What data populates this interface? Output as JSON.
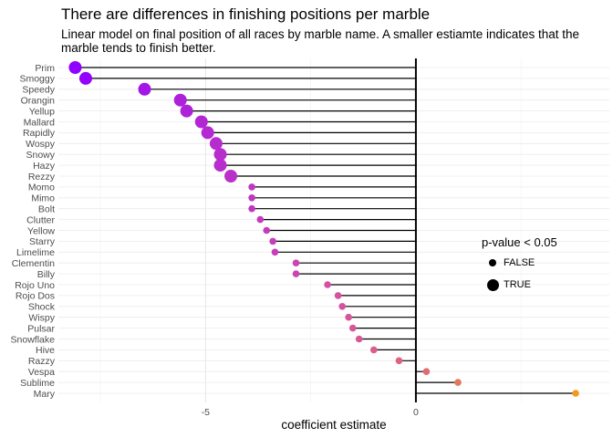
{
  "chart_data": {
    "type": "lollipop",
    "title": "There are differences in finishing positions per marble",
    "subtitle": "Linear model on final position of all races by marble name. A smaller estiamte indicates that the marble tends to finish better.",
    "xlabel": "coefficient estimate",
    "ylabel": "",
    "xlim": [
      -8.5,
      4.6
    ],
    "xticks": [
      -5,
      0
    ],
    "xtick_labels": [
      "-5",
      "0"
    ],
    "grid": true,
    "legend": {
      "title": "p-value < 0.05",
      "placement": "right",
      "items": [
        {
          "label": "FALSE",
          "size": "small"
        },
        {
          "label": "TRUE",
          "size": "large"
        }
      ]
    },
    "color_scale": {
      "low": "#9000ff",
      "mid": "#d44ea8",
      "high": "#f29a1b"
    },
    "categories": [
      "Prim",
      "Smoggy",
      "Speedy",
      "Orangin",
      "Yellup",
      "Mallard",
      "Rapidly",
      "Wospy",
      "Snowy",
      "Hazy",
      "Rezzy",
      "Momo",
      "Mimo",
      "Bolt",
      "Clutter",
      "Yellow",
      "Starry",
      "Limelime",
      "Clementin",
      "Billy",
      "Rojo Uno",
      "Rojo Dos",
      "Shock",
      "Wispy",
      "Pulsar",
      "Snowflake",
      "Hive",
      "Razzy",
      "Vespa",
      "Sublime",
      "Mary"
    ],
    "values": [
      -8.1,
      -7.85,
      -6.45,
      -5.6,
      -5.45,
      -5.1,
      -4.95,
      -4.75,
      -4.65,
      -4.65,
      -4.4,
      -3.9,
      -3.9,
      -3.9,
      -3.7,
      -3.55,
      -3.4,
      -3.35,
      -2.85,
      -2.85,
      -2.1,
      -1.85,
      -1.75,
      -1.6,
      -1.5,
      -1.35,
      -1.0,
      -0.4,
      0.25,
      1.0,
      3.8
    ],
    "significant": [
      true,
      true,
      true,
      true,
      true,
      true,
      true,
      true,
      true,
      true,
      true,
      false,
      false,
      false,
      false,
      false,
      false,
      false,
      false,
      false,
      false,
      false,
      false,
      false,
      false,
      false,
      false,
      false,
      false,
      false,
      false
    ]
  }
}
